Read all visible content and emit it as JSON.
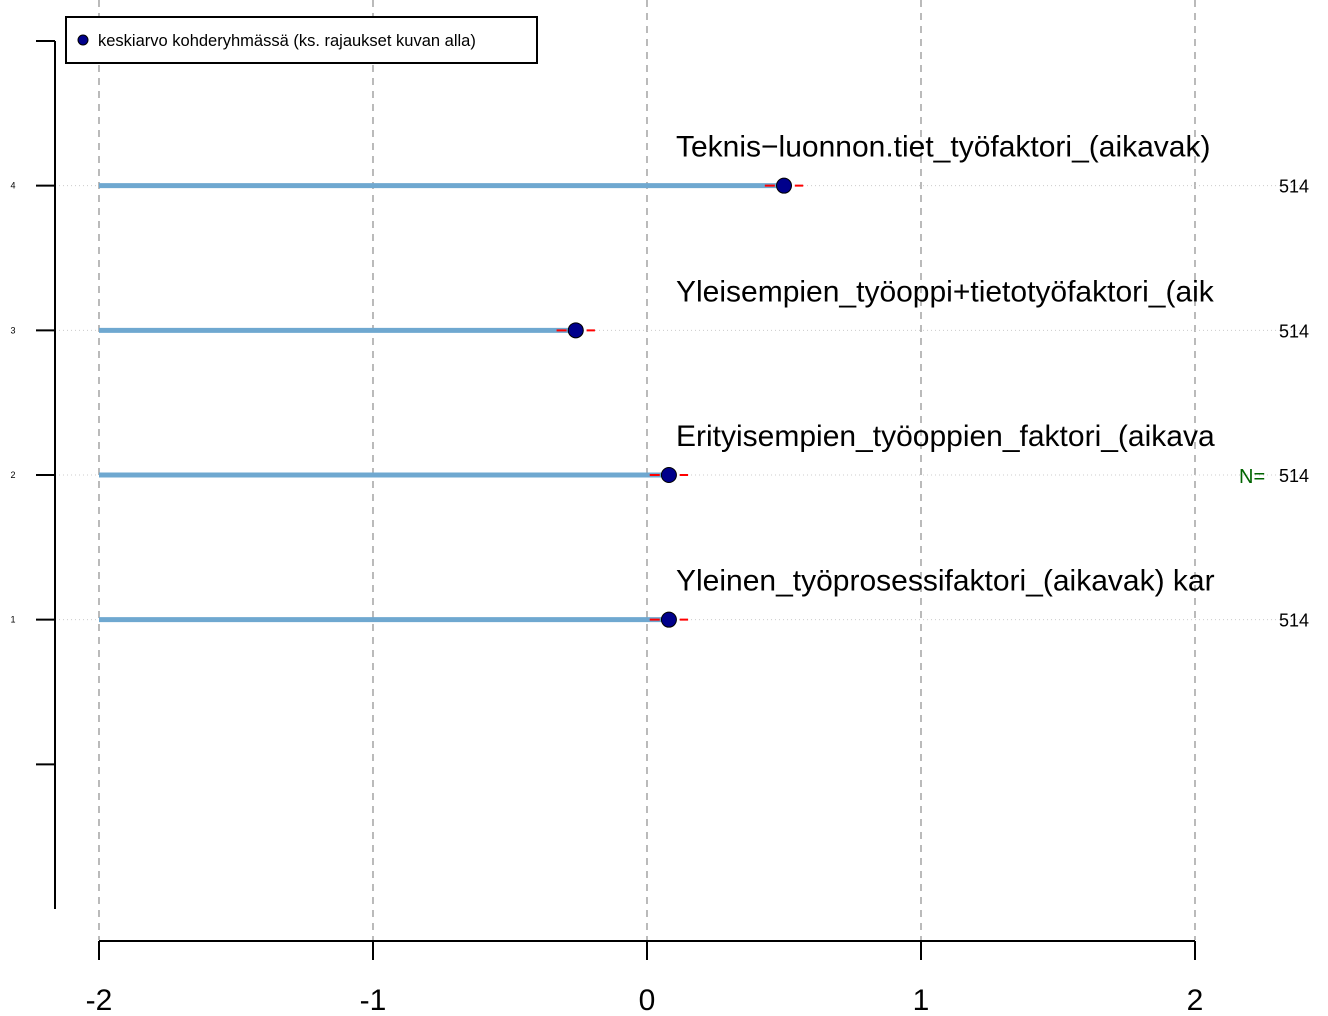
{
  "chart_data": {
    "type": "dot",
    "xlim": [
      -2,
      2
    ],
    "ylim": [
      -1,
      5
    ],
    "x_ticks": [
      "-2",
      "-1",
      "0",
      "1",
      "2"
    ],
    "x_tick_values": [
      -2,
      -1,
      0,
      1,
      2
    ],
    "y_ticks": [
      "1",
      "2",
      "3",
      "4"
    ],
    "y_tick_values": [
      1,
      2,
      3,
      4
    ],
    "y_axis_tick_marks": [
      0,
      1,
      2,
      3,
      4,
      5
    ],
    "grid": true,
    "baseline": -2,
    "legend": {
      "position": "top-left",
      "label": "keskiarvo kohderyhmässä (ks. rajaukset kuvan alla)"
    },
    "n_prefix": "N=",
    "items": [
      {
        "y": 4,
        "label": "Teknis−luonnon.tiet_työfaktori_(aikavak)",
        "mean": 0.5,
        "ci": [
          0.43,
          0.57
        ],
        "n": "514"
      },
      {
        "y": 3,
        "label": "Yleisempien_työoppi+tietotyöfaktori_(aik",
        "mean": -0.26,
        "ci": [
          -0.33,
          -0.19
        ],
        "n": "514"
      },
      {
        "y": 2,
        "label": "Erityisempien_työoppien_faktori_(aikava",
        "mean": 0.08,
        "ci": [
          0.01,
          0.15
        ],
        "n": "514"
      },
      {
        "y": 1,
        "label": "Yleinen_työprosessifaktori_(aikavak) kar",
        "mean": 0.08,
        "ci": [
          0.01,
          0.15
        ],
        "n": "514"
      }
    ],
    "colors": {
      "point": "#00008b",
      "bar": "#6fa8d0",
      "ci": "#ff0000",
      "grid": "#aaaaaa",
      "axis": "#000000",
      "n_prefix": "#006400"
    }
  }
}
